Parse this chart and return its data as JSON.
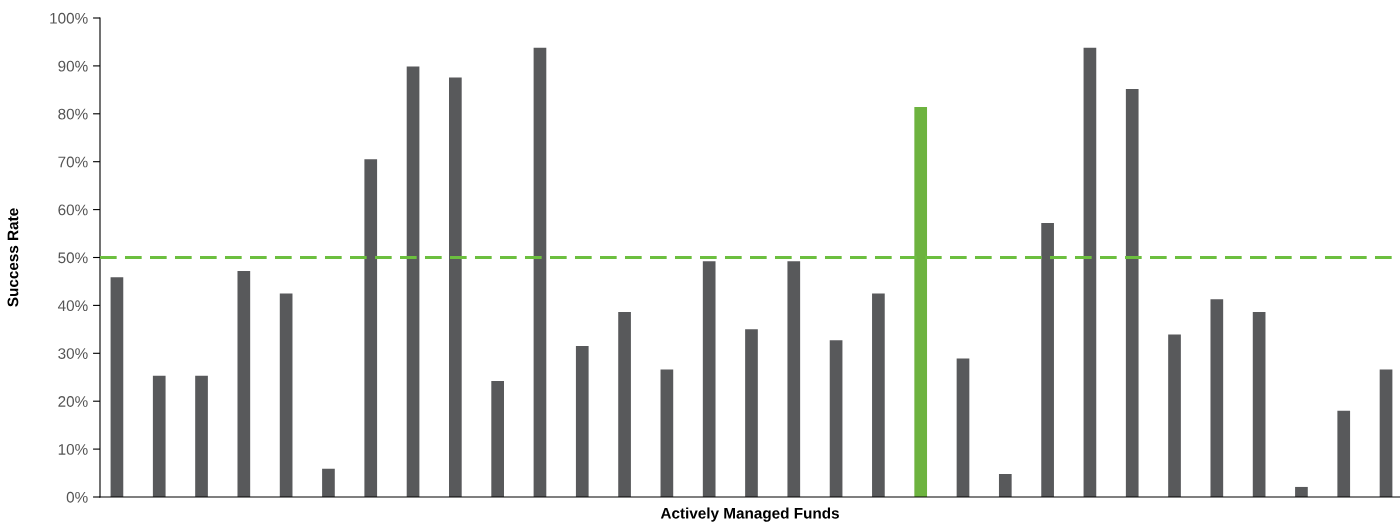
{
  "chart_data": {
    "type": "bar",
    "xlabel": "Actively Managed Funds",
    "ylabel": "Success Rate",
    "categories": [
      null,
      null,
      null,
      null,
      null,
      null,
      null,
      null,
      null,
      null,
      null,
      null,
      null,
      null,
      null,
      null,
      null,
      null,
      null,
      null,
      null,
      null,
      null,
      null,
      null,
      null,
      null,
      null,
      null,
      null,
      null
    ],
    "values": [
      45.9,
      25.3,
      25.3,
      47.2,
      42.5,
      5.9,
      70.5,
      89.9,
      87.6,
      24.2,
      93.8,
      31.5,
      38.6,
      26.6,
      49.2,
      35.0,
      49.2,
      32.7,
      42.5,
      81.4,
      28.9,
      4.8,
      57.2,
      93.8,
      85.2,
      33.9,
      41.3,
      38.6,
      2.1,
      18.0,
      26.6
    ],
    "colors": [
      "#58595b",
      "#58595b",
      "#58595b",
      "#58595b",
      "#58595b",
      "#58595b",
      "#58595b",
      "#58595b",
      "#58595b",
      "#58595b",
      "#58595b",
      "#58595b",
      "#58595b",
      "#58595b",
      "#58595b",
      "#58595b",
      "#58595b",
      "#58595b",
      "#58595b",
      "#6db33f",
      "#58595b",
      "#58595b",
      "#58595b",
      "#58595b",
      "#58595b",
      "#58595b",
      "#58595b",
      "#58595b",
      "#58595b",
      "#58595b",
      "#58595b"
    ],
    "ylim": [
      0,
      100
    ],
    "yticks": [
      {
        "value": 0,
        "label": "0%"
      },
      {
        "value": 10,
        "label": "10%"
      },
      {
        "value": 20,
        "label": "20%"
      },
      {
        "value": 30,
        "label": "30%"
      },
      {
        "value": 40,
        "label": "40%"
      },
      {
        "value": 50,
        "label": "50%"
      },
      {
        "value": 60,
        "label": "60%"
      },
      {
        "value": 70,
        "label": "70%"
      },
      {
        "value": 80,
        "label": "80%"
      },
      {
        "value": 90,
        "label": "90%"
      },
      {
        "value": 100,
        "label": "100%"
      }
    ],
    "ref_lines": [
      {
        "axis": "y",
        "value": 50,
        "color": "#6cbf3f",
        "line_style": "dashed"
      }
    ],
    "grid": false,
    "legend": false
  }
}
